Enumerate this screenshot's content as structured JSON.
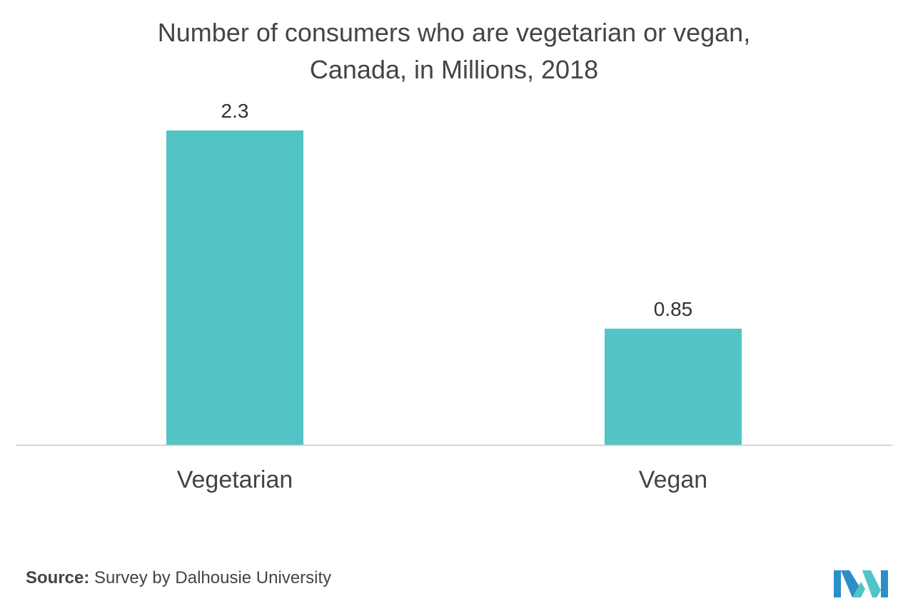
{
  "chart_data": {
    "type": "bar",
    "title_lines": [
      "Number of consumers who are vegetarian or vegan,",
      "Canada, in Millions,  2018"
    ],
    "categories": [
      "Vegetarian",
      "Vegan"
    ],
    "values": [
      2.3,
      0.85
    ],
    "value_labels": [
      "2.3",
      "0.85"
    ],
    "xlabel": "",
    "ylabel": "",
    "ylim": [
      0,
      2.3
    ],
    "grid": false,
    "legend": "none",
    "bar_color": "#52c4c6",
    "axis_color": "#c8c8c8"
  },
  "source": {
    "label": "Source:",
    "text": " Survey by Dalhousie University"
  },
  "logo": {
    "icon": "mordor-intelligence-logo",
    "colors": [
      "#2a8ec9",
      "#52c4c6"
    ]
  }
}
